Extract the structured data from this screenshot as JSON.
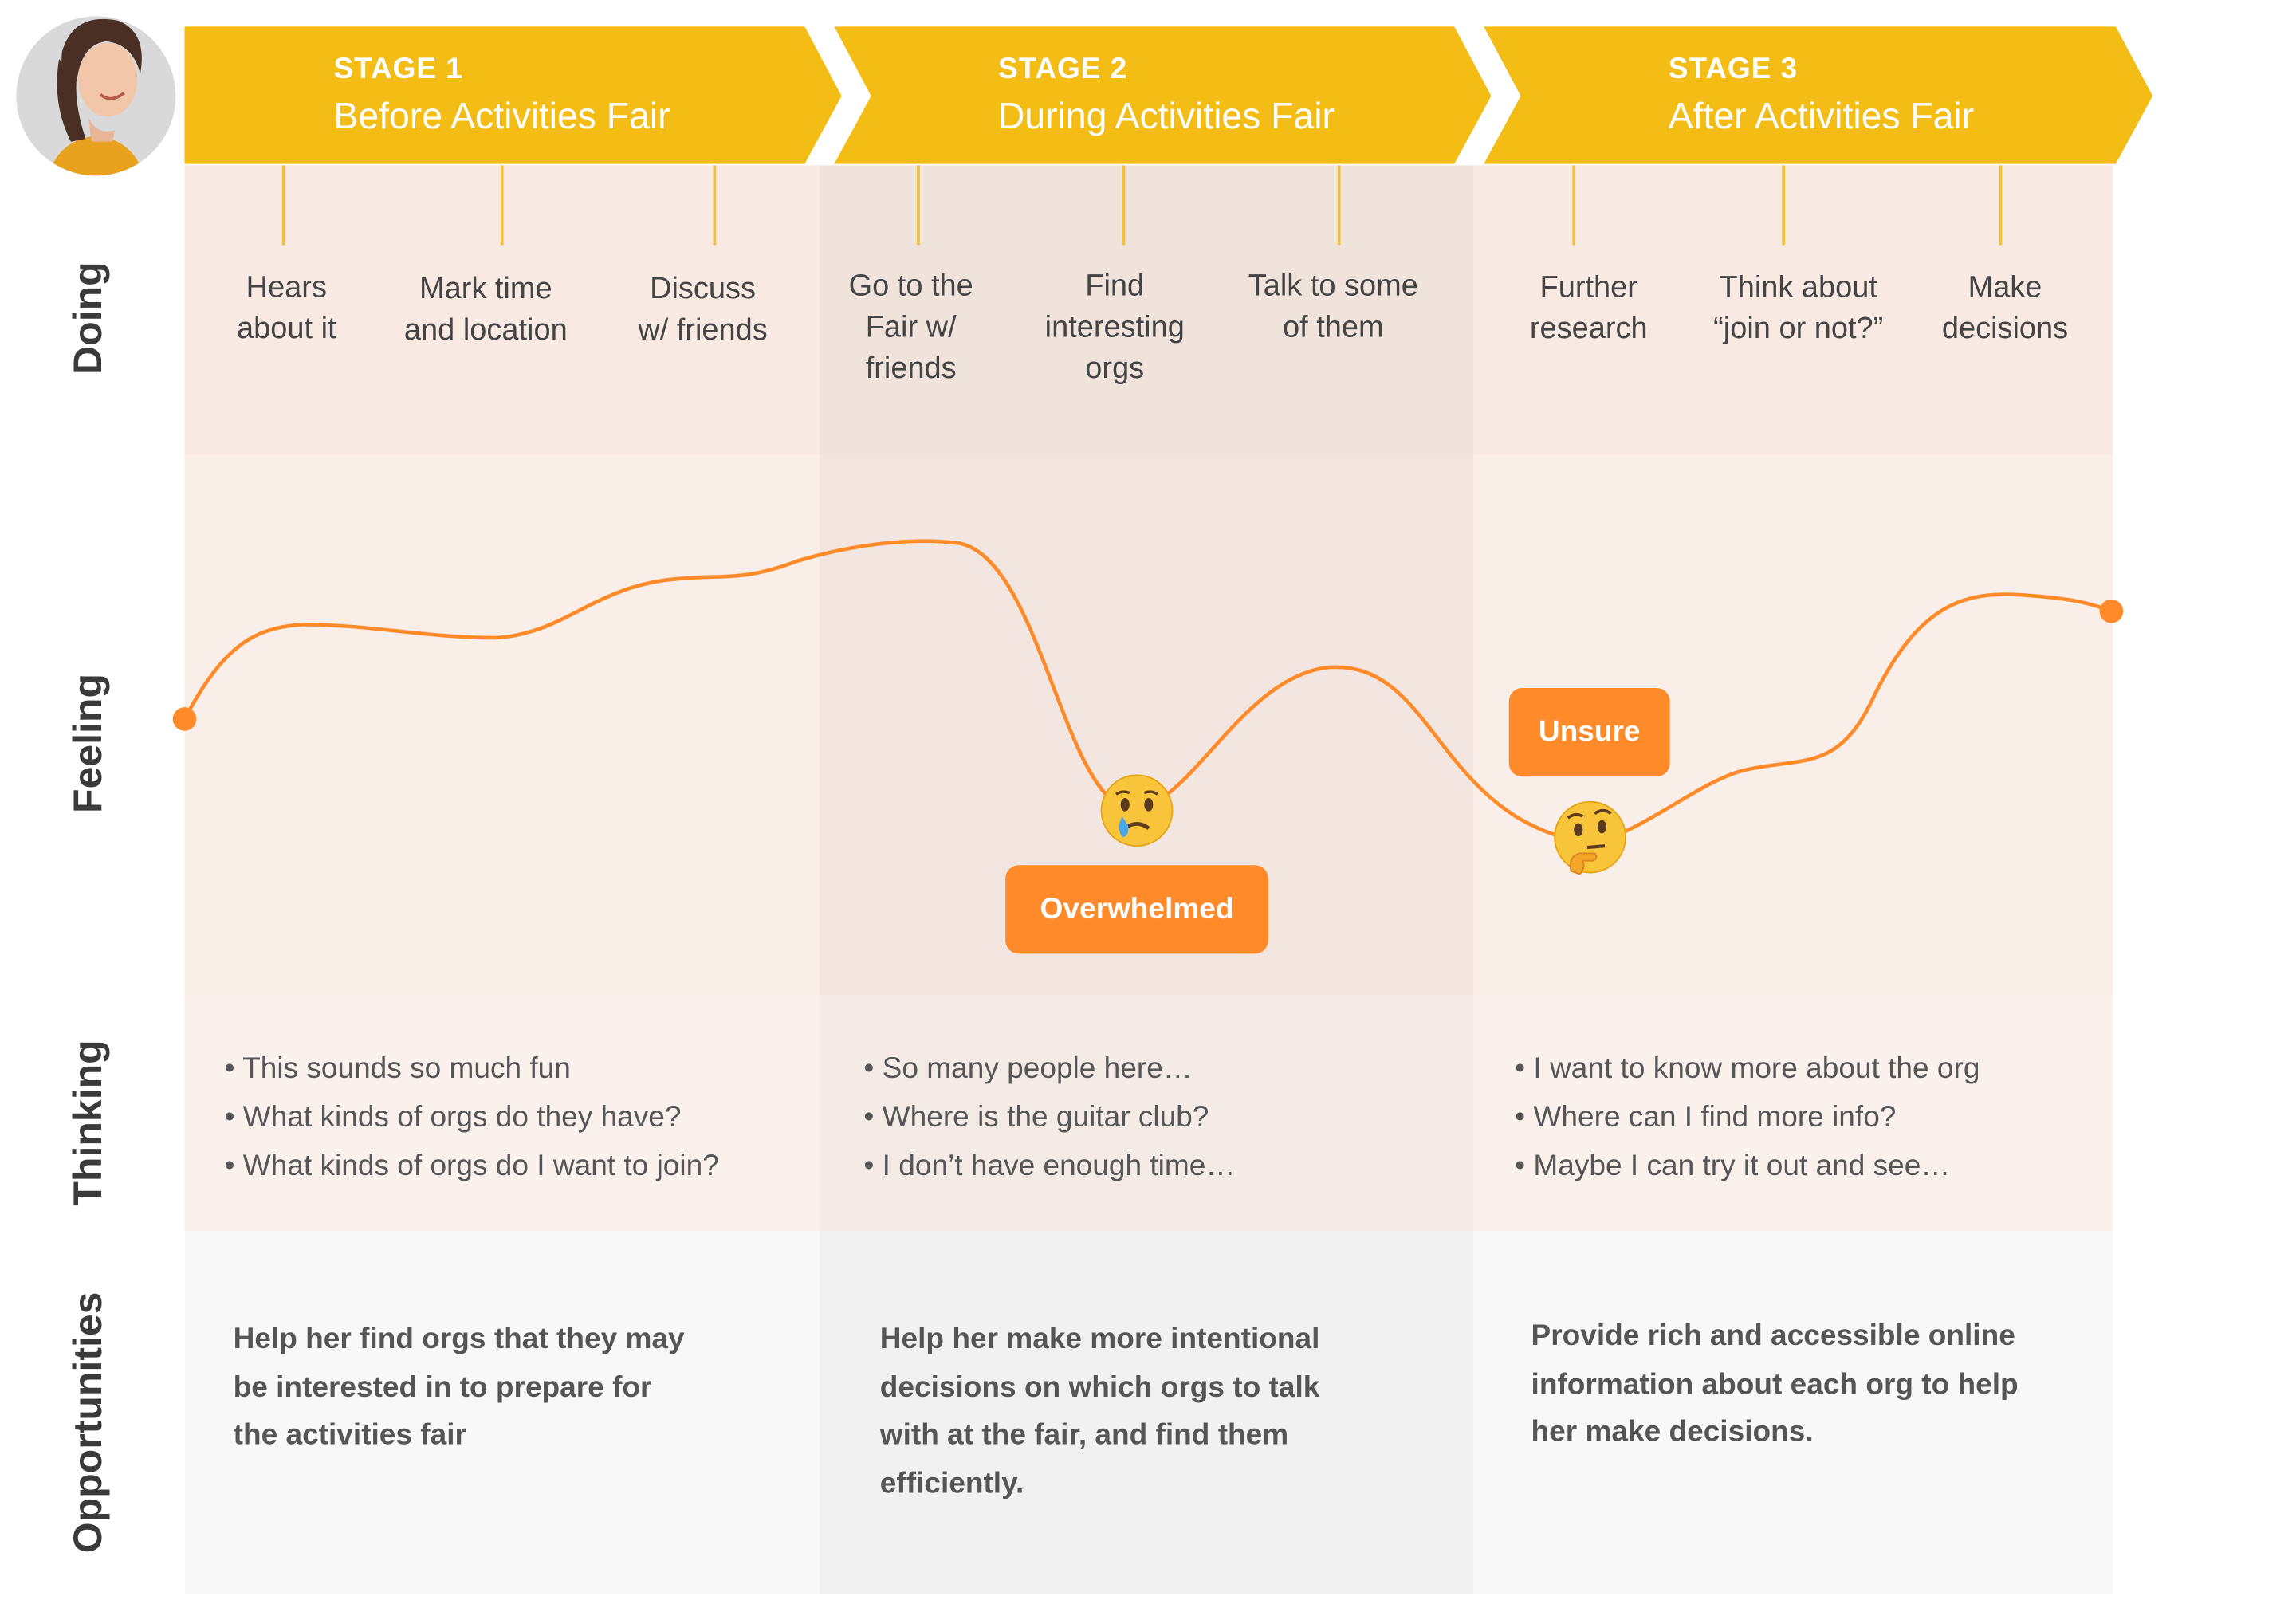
{
  "stages": [
    {
      "number": "STAGE 1",
      "title": "Before Activities Fair"
    },
    {
      "number": "STAGE 2",
      "title": "During Activities Fair"
    },
    {
      "number": "STAGE 3",
      "title": "After Activities Fair"
    }
  ],
  "rows": {
    "doing": "Doing",
    "feeling": "Feeling",
    "thinking": "Thinking",
    "opportunities": "Opportunities"
  },
  "doing": [
    [
      "Hears",
      "about it"
    ],
    [
      "Mark time",
      "and location"
    ],
    [
      "Discuss",
      "w/ friends"
    ],
    [
      "Go to the",
      "Fair w/",
      "friends"
    ],
    [
      "Find",
      "interesting",
      "orgs"
    ],
    [
      "Talk to some",
      "of them"
    ],
    [
      "Further",
      "research"
    ],
    [
      "Think about",
      "“join or not?”"
    ],
    [
      "Make",
      "decisions"
    ]
  ],
  "feeling": {
    "overwhelmed": "Overwhelmed",
    "unsure": "Unsure"
  },
  "thinking": [
    [
      "• This sounds so much fun",
      "• What kinds of orgs do they have?",
      "• What kinds of orgs do I want to join?"
    ],
    [
      "• So many people here…",
      "• Where is the guitar club?",
      "• I don’t have enough time…"
    ],
    [
      "•  I want to know more about the org",
      "• Where can I find more info?",
      "• Maybe I can try it out and see…"
    ]
  ],
  "opportunities": [
    [
      "Help her find orgs that they may",
      "be interested in to prepare for",
      "the activities fair"
    ],
    [
      "Help her make more intentional",
      "decisions on which orgs to talk",
      "with at the fair, and find them",
      "efficiently."
    ],
    [
      "Provide rich and accessible online",
      "information about each org to help",
      "her make decisions."
    ]
  ],
  "colors": {
    "banner": "#f3bd16",
    "curve": "#ff8a2a",
    "badge": "#ff8a2a"
  }
}
